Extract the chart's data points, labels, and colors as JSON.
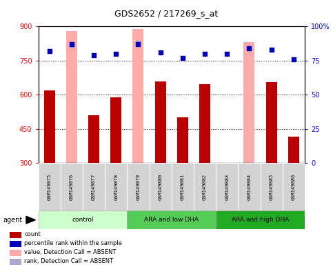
{
  "title": "GDS2652 / 217269_s_at",
  "samples": [
    "GSM149875",
    "GSM149876",
    "GSM149877",
    "GSM149878",
    "GSM149879",
    "GSM149880",
    "GSM149881",
    "GSM149882",
    "GSM149883",
    "GSM149884",
    "GSM149885",
    "GSM149886"
  ],
  "count_values": [
    620,
    300,
    510,
    590,
    300,
    660,
    500,
    645,
    300,
    300,
    655,
    415
  ],
  "absent_bar_values": [
    300,
    880,
    300,
    300,
    890,
    300,
    300,
    300,
    300,
    830,
    300,
    300
  ],
  "percentile_rank": [
    82,
    87,
    79,
    80,
    87,
    81,
    77,
    80,
    80,
    84,
    83,
    76
  ],
  "absent_rank": [
    null,
    86,
    null,
    null,
    88,
    null,
    null,
    null,
    null,
    84,
    null,
    null
  ],
  "ylim_left": [
    300,
    900
  ],
  "ylim_right": [
    0,
    100
  ],
  "yticks_left": [
    300,
    450,
    600,
    750,
    900
  ],
  "yticks_right": [
    0,
    25,
    50,
    75,
    100
  ],
  "groups": [
    {
      "label": "control",
      "start": 0,
      "end": 4,
      "color": "#ccffcc"
    },
    {
      "label": "ARA and low DHA",
      "start": 4,
      "end": 8,
      "color": "#55cc55"
    },
    {
      "label": "ARA and high DHA",
      "start": 8,
      "end": 12,
      "color": "#22aa22"
    }
  ],
  "bar_color_dark_red": "#bb0000",
  "bar_color_light_pink": "#ffaaaa",
  "bar_color_blue": "#0000bb",
  "bar_color_light_blue": "#aaaacc",
  "agent_label": "agent",
  "legend_items": [
    {
      "label": "count",
      "color": "#bb0000"
    },
    {
      "label": "percentile rank within the sample",
      "color": "#0000bb"
    },
    {
      "label": "value, Detection Call = ABSENT",
      "color": "#ffaaaa"
    },
    {
      "label": "rank, Detection Call = ABSENT",
      "color": "#aaaacc"
    }
  ]
}
